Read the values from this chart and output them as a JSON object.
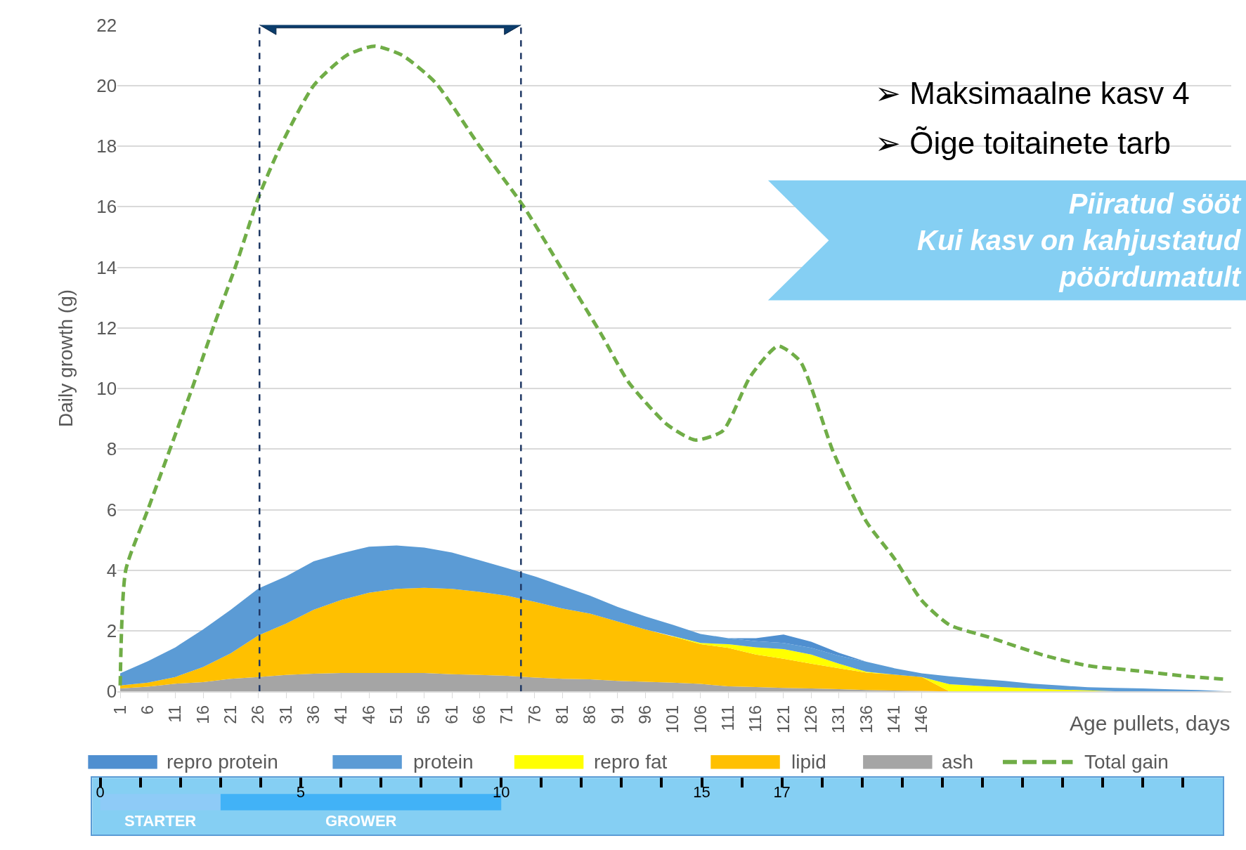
{
  "chart_data": [
    {
      "type": "area",
      "stacked": true,
      "ylabel": "Daily growth (g)",
      "xlabel": "Age pullets, days",
      "x": [
        1,
        6,
        11,
        16,
        21,
        26,
        31,
        36,
        41,
        46,
        51,
        56,
        61,
        66,
        71,
        76,
        81,
        86,
        91,
        96,
        101,
        106,
        111,
        116,
        121,
        126,
        131,
        136,
        141,
        146,
        151,
        156,
        161,
        166,
        171,
        176,
        181,
        186,
        191,
        196,
        201
      ],
      "xlim": [
        0.5,
        202
      ],
      "xticks": [
        1,
        6,
        11,
        16,
        21,
        26,
        31,
        36,
        41,
        46,
        51,
        56,
        61,
        66,
        71,
        76,
        81,
        86,
        91,
        96,
        101,
        106,
        111,
        116,
        121,
        126,
        131,
        136,
        141,
        146
      ],
      "ylim": [
        0,
        22
      ],
      "yticks": [
        0,
        2,
        4,
        6,
        8,
        10,
        12,
        14,
        16,
        18,
        20,
        22
      ],
      "grid": "y",
      "legend": "bottom",
      "series": [
        {
          "name": "ash",
          "color": "#a5a5a5",
          "values": [
            0.1,
            0.16,
            0.26,
            0.31,
            0.42,
            0.48,
            0.55,
            0.59,
            0.61,
            0.61,
            0.61,
            0.61,
            0.57,
            0.55,
            0.52,
            0.46,
            0.42,
            0.4,
            0.35,
            0.32,
            0.29,
            0.25,
            0.17,
            0.15,
            0.12,
            0.1,
            0.08,
            0.05,
            0.03,
            0.02,
            0,
            0,
            0,
            0,
            0,
            0,
            0,
            0,
            0,
            0,
            0
          ]
        },
        {
          "name": "lipid",
          "color": "#ffc000",
          "values": [
            0.1,
            0.13,
            0.22,
            0.5,
            0.84,
            1.37,
            1.69,
            2.11,
            2.41,
            2.65,
            2.78,
            2.81,
            2.82,
            2.74,
            2.64,
            2.5,
            2.32,
            2.17,
            1.96,
            1.73,
            1.52,
            1.31,
            1.27,
            1.07,
            0.96,
            0.82,
            0.69,
            0.57,
            0.53,
            0.46,
            0,
            0,
            0,
            0,
            0,
            0,
            0,
            0,
            0,
            0,
            0
          ]
        },
        {
          "name": "repro fat",
          "color": "#ffff00",
          "values": [
            null,
            null,
            null,
            null,
            null,
            null,
            null,
            null,
            null,
            null,
            null,
            null,
            null,
            null,
            null,
            null,
            null,
            null,
            null,
            null,
            0.02,
            0.04,
            0.12,
            0.24,
            0.32,
            0.3,
            0.15,
            0.03,
            0,
            0,
            0.24,
            0.19,
            0.14,
            0.1,
            0.06,
            0.04,
            0.01,
            null,
            null,
            null,
            null
          ]
        },
        {
          "name": "protein",
          "color": "#5b9bd5",
          "values": [
            0.4,
            0.71,
            0.98,
            1.24,
            1.44,
            1.55,
            1.56,
            1.6,
            1.54,
            1.52,
            1.43,
            1.33,
            1.2,
            1.04,
            0.91,
            0.84,
            0.74,
            0.59,
            0.48,
            0.43,
            0.37,
            0.3,
            0.2,
            0.2,
            0.2,
            0.22,
            0.26,
            0.33,
            0.21,
            0.12,
            0.26,
            0.23,
            0.21,
            0.16,
            0.14,
            0.1,
            0.11,
            0.1,
            0.07,
            0.05,
            0.01
          ]
        },
        {
          "name": "repro protein",
          "color": "#4f8fd0",
          "values": [
            null,
            null,
            null,
            null,
            null,
            null,
            null,
            null,
            null,
            null,
            null,
            null,
            null,
            null,
            null,
            null,
            null,
            null,
            null,
            null,
            null,
            null,
            0,
            0.1,
            0.28,
            0.2,
            0.1,
            0,
            null,
            null,
            null,
            null,
            null,
            null,
            null,
            null,
            null,
            null,
            null,
            null,
            null
          ]
        },
        {
          "name": "Total gain",
          "type": "line",
          "color": "#70ad47",
          "line_style": "dashed",
          "marker": "none",
          "x": [
            1,
            2,
            6,
            14,
            18,
            22,
            26,
            30,
            36,
            42,
            47,
            52,
            58,
            66,
            74,
            82,
            88,
            93,
            100,
            105,
            110,
            115,
            120,
            124,
            130,
            136,
            141,
            146,
            151,
            158,
            168,
            176,
            184,
            194,
            201
          ],
          "values": [
            0.2,
            4.0,
            6.0,
            10.0,
            12.1,
            14.1,
            16.3,
            18.0,
            20.0,
            21.0,
            21.3,
            21.0,
            20.1,
            18.0,
            16.0,
            13.6,
            11.8,
            10.2,
            8.8,
            8.3,
            8.6,
            10.4,
            11.4,
            10.9,
            7.9,
            5.6,
            4.4,
            3.0,
            2.2,
            1.8,
            1.2,
            0.85,
            0.7,
            0.5,
            0.4
          ]
        }
      ],
      "ref_lines": [
        {
          "axis": "x",
          "value": 26.2,
          "color": "#1f3864",
          "line_style": "dashed"
        },
        {
          "axis": "x",
          "value": 73.5,
          "color": "#1f3864",
          "line_style": "dashed"
        }
      ],
      "annotations": [
        "➢ Maksimaalne kasv 4",
        "➢ Õige toitainete tarb",
        "Piiratud sööt\nKui kasv on kahjustatud\npöördumatult"
      ]
    },
    {
      "type": "bar",
      "orientation": "horizontal",
      "stacked": true,
      "categories": [
        null
      ],
      "tick_labels": "x",
      "series": [
        {
          "name": "STARTER",
          "color": "#8ecbf7",
          "values": [
            3
          ]
        },
        {
          "name": "GROWER",
          "color": "#41b2f7",
          "values": [
            7
          ]
        }
      ],
      "xlim": [
        -0.2,
        28
      ],
      "xticks": [
        0,
        {
          "value": 1,
          "label": null
        },
        {
          "value": 2,
          "label": null
        },
        {
          "value": 3,
          "label": null
        },
        {
          "value": 4,
          "label": null
        },
        5,
        {
          "value": 6,
          "label": null
        },
        {
          "value": 7,
          "label": null
        },
        {
          "value": 8,
          "label": null
        },
        {
          "value": 9,
          "label": null
        },
        10,
        {
          "value": 11,
          "label": null
        },
        {
          "value": 12,
          "label": null
        },
        {
          "value": 13,
          "label": null
        },
        {
          "value": 14,
          "label": null
        },
        15,
        {
          "value": 16,
          "label": null
        },
        17,
        {
          "value": 18,
          "label": null
        },
        {
          "value": 19,
          "label": null
        },
        {
          "value": 20,
          "label": null
        },
        {
          "value": 21,
          "label": null
        },
        {
          "value": 22,
          "label": null
        },
        {
          "value": 23,
          "label": null
        },
        {
          "value": 24,
          "label": null
        },
        {
          "value": 25,
          "label": null
        },
        {
          "value": 26,
          "label": null
        },
        {
          "value": 27,
          "label": null
        }
      ]
    }
  ]
}
